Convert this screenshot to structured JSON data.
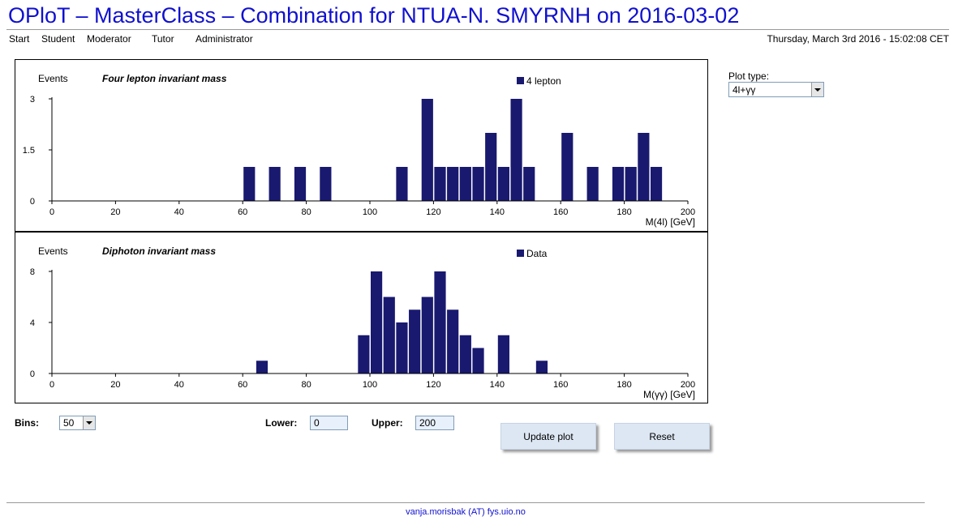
{
  "page": {
    "title": "OPloT – MasterClass – Combination for NTUA-N. SMYRNH on 2016-03-02",
    "datetime": "Thursday, March 3rd 2016 - 15:02:08 CET",
    "footer_email": "vanja.morisbak (AT) fys.uio.no"
  },
  "nav": {
    "items": [
      {
        "label": "Start"
      },
      {
        "label": "Student"
      },
      {
        "label": "Moderator"
      },
      {
        "label": "Tutor"
      },
      {
        "label": "Administrator"
      }
    ]
  },
  "sidebar": {
    "plot_type_label": "Plot type:",
    "plot_type_value": "4l+γγ"
  },
  "controls": {
    "bins_label": "Bins:",
    "bins_value": "50",
    "lower_label": "Lower:",
    "lower_value": "0",
    "upper_label": "Upper:",
    "upper_value": "200",
    "update_button": "Update plot",
    "reset_button": "Reset"
  },
  "colors": {
    "bar": "#191970",
    "title": "#1010d0",
    "button": "#dde7f3"
  },
  "chart_data": [
    {
      "type": "bar",
      "title": "Four lepton invariant mass",
      "ylabel": "Events",
      "xlabel": "M(4l) [GeV]",
      "xlim": [
        0,
        200
      ],
      "ylim": [
        0,
        3
      ],
      "yticks": [
        0,
        1.5,
        3
      ],
      "xticks": [
        0,
        20,
        40,
        60,
        80,
        100,
        120,
        140,
        160,
        180,
        200
      ],
      "bin_width": 4,
      "legend": "4 lepton",
      "legend_position": "top-right",
      "series": [
        {
          "name": "4 lepton",
          "bins": [
            {
              "x": 60,
              "y": 1
            },
            {
              "x": 68,
              "y": 1
            },
            {
              "x": 76,
              "y": 1
            },
            {
              "x": 84,
              "y": 1
            },
            {
              "x": 108,
              "y": 1
            },
            {
              "x": 116,
              "y": 3
            },
            {
              "x": 120,
              "y": 1
            },
            {
              "x": 124,
              "y": 1
            },
            {
              "x": 128,
              "y": 1
            },
            {
              "x": 132,
              "y": 1
            },
            {
              "x": 136,
              "y": 2
            },
            {
              "x": 140,
              "y": 1
            },
            {
              "x": 144,
              "y": 3
            },
            {
              "x": 148,
              "y": 1
            },
            {
              "x": 160,
              "y": 2
            },
            {
              "x": 168,
              "y": 1
            },
            {
              "x": 176,
              "y": 1
            },
            {
              "x": 180,
              "y": 1
            },
            {
              "x": 184,
              "y": 2
            },
            {
              "x": 188,
              "y": 1
            }
          ]
        }
      ]
    },
    {
      "type": "bar",
      "title": "Diphoton invariant mass",
      "ylabel": "Events",
      "xlabel": "M(γγ) [GeV]",
      "xlim": [
        0,
        200
      ],
      "ylim": [
        0,
        8
      ],
      "yticks": [
        0,
        4,
        8
      ],
      "xticks": [
        0,
        20,
        40,
        60,
        80,
        100,
        120,
        140,
        160,
        180,
        200
      ],
      "bin_width": 4,
      "legend": "Data",
      "legend_position": "top-right",
      "series": [
        {
          "name": "Data",
          "bins": [
            {
              "x": 64,
              "y": 1
            },
            {
              "x": 96,
              "y": 3
            },
            {
              "x": 100,
              "y": 8
            },
            {
              "x": 104,
              "y": 6
            },
            {
              "x": 108,
              "y": 4
            },
            {
              "x": 112,
              "y": 5
            },
            {
              "x": 116,
              "y": 6
            },
            {
              "x": 120,
              "y": 8
            },
            {
              "x": 124,
              "y": 5
            },
            {
              "x": 128,
              "y": 3
            },
            {
              "x": 132,
              "y": 2
            },
            {
              "x": 140,
              "y": 3
            },
            {
              "x": 152,
              "y": 1
            }
          ]
        }
      ]
    }
  ]
}
